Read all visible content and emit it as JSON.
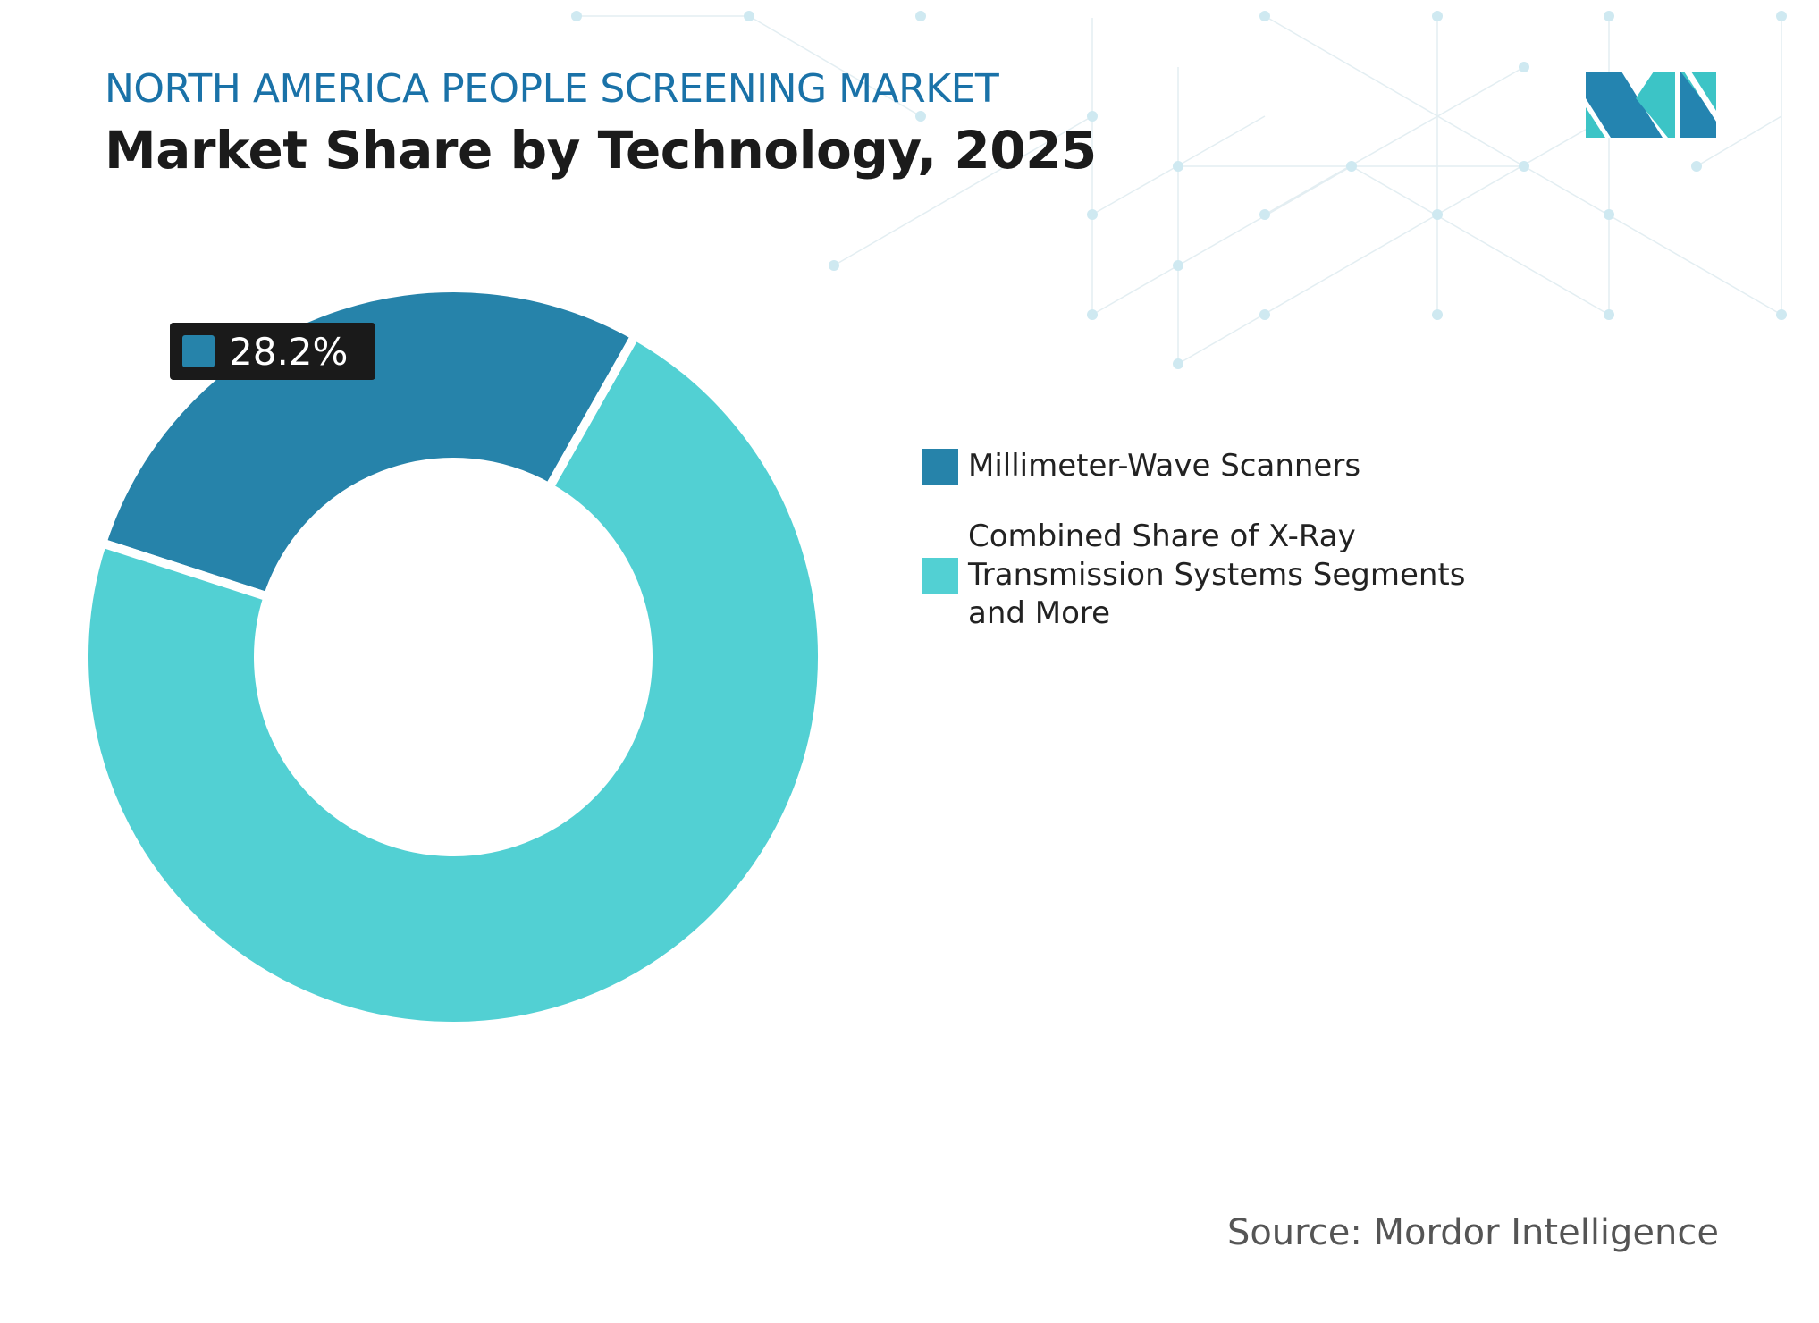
{
  "header": {
    "subtitle": "NORTH AMERICA PEOPLE SCREENING MARKET",
    "title": "Market Share by Technology, 2025"
  },
  "source": "Source: Mordor Intelligence",
  "colors": {
    "accent": "#1a72a8",
    "dark_slice": "#2683aa",
    "light_slice": "#52d0d3",
    "logo_blue": "#2484b0",
    "logo_teal": "#3cc4c6"
  },
  "logo_icon": "mordor-intelligence-logo",
  "chart_data": {
    "type": "pie",
    "donut": true,
    "title": "Market Share by Technology, 2025",
    "series": [
      {
        "name": "Millimeter-Wave Scanners",
        "value": 28.2,
        "color": "#2683aa",
        "label": "28.2%"
      },
      {
        "name": "Combined Share of X-Ray Transmission Systems Segments and More",
        "value": 71.8,
        "color": "#52d0d3"
      }
    ],
    "legend_placement": "right"
  }
}
